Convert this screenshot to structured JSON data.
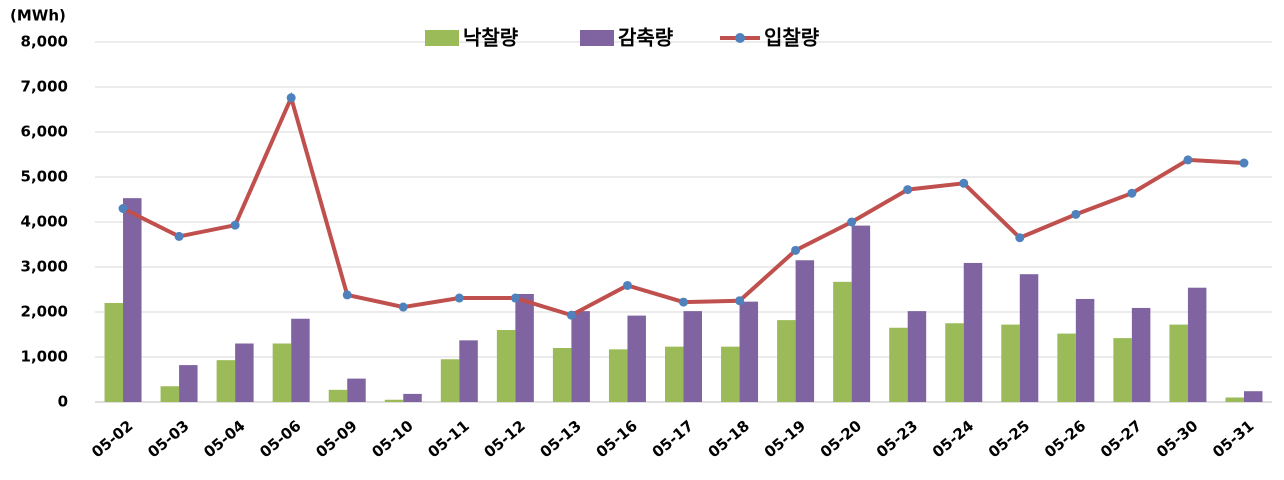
{
  "chart_data": {
    "type": "bar",
    "y_label": "(MWh)",
    "categories": [
      "05-02",
      "05-03",
      "05-04",
      "05-06",
      "05-09",
      "05-10",
      "05-11",
      "05-12",
      "05-13",
      "05-16",
      "05-17",
      "05-18",
      "05-19",
      "05-20",
      "05-23",
      "05-24",
      "05-25",
      "05-26",
      "05-27",
      "05-30",
      "05-31"
    ],
    "series": [
      {
        "name": "낙찰량",
        "type": "bar",
        "color": "#9bbb59",
        "values": [
          2200,
          350,
          930,
          1300,
          270,
          50,
          950,
          1600,
          1200,
          1170,
          1230,
          1230,
          1820,
          2670,
          1650,
          1750,
          1720,
          1520,
          1420,
          1720,
          100
        ]
      },
      {
        "name": "감축량",
        "type": "bar",
        "color": "#8064a2",
        "values": [
          4530,
          820,
          1300,
          1850,
          520,
          180,
          1370,
          2400,
          2020,
          1920,
          2020,
          2230,
          3150,
          3920,
          2020,
          3090,
          2840,
          2290,
          2090,
          2540,
          240
        ]
      },
      {
        "name": "입찰량",
        "type": "line",
        "color": "#c0504d",
        "marker_color": "#4f81bd",
        "values": [
          4300,
          3680,
          3930,
          6760,
          2380,
          2110,
          2310,
          2310,
          1930,
          2590,
          2220,
          2250,
          3370,
          4000,
          4720,
          4860,
          3650,
          4170,
          4640,
          5380,
          5310
        ]
      }
    ],
    "ylim": [
      0,
      8000
    ],
    "yticks": [
      0,
      {
        "value": 1000,
        "label": "1,000"
      },
      {
        "value": 2000,
        "label": "2,000"
      },
      {
        "value": 3000,
        "label": "3,000"
      },
      {
        "value": 4000,
        "label": "4,000"
      },
      {
        "value": 5000,
        "label": "5,000"
      },
      {
        "value": 6000,
        "label": "6,000"
      },
      {
        "value": 7000,
        "label": "7,000"
      },
      {
        "value": 8000,
        "label": "8,000"
      }
    ],
    "grid": true,
    "legend": "top"
  }
}
